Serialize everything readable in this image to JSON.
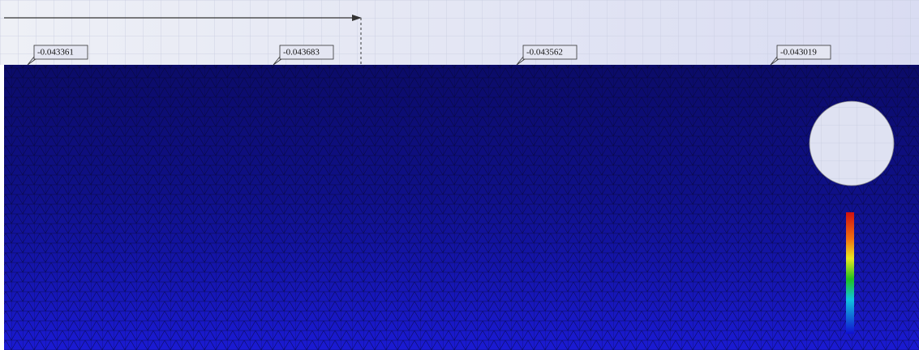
{
  "probe_labels": [
    -0.043361,
    -0.043683,
    -0.043562,
    -0.043019
  ]
}
